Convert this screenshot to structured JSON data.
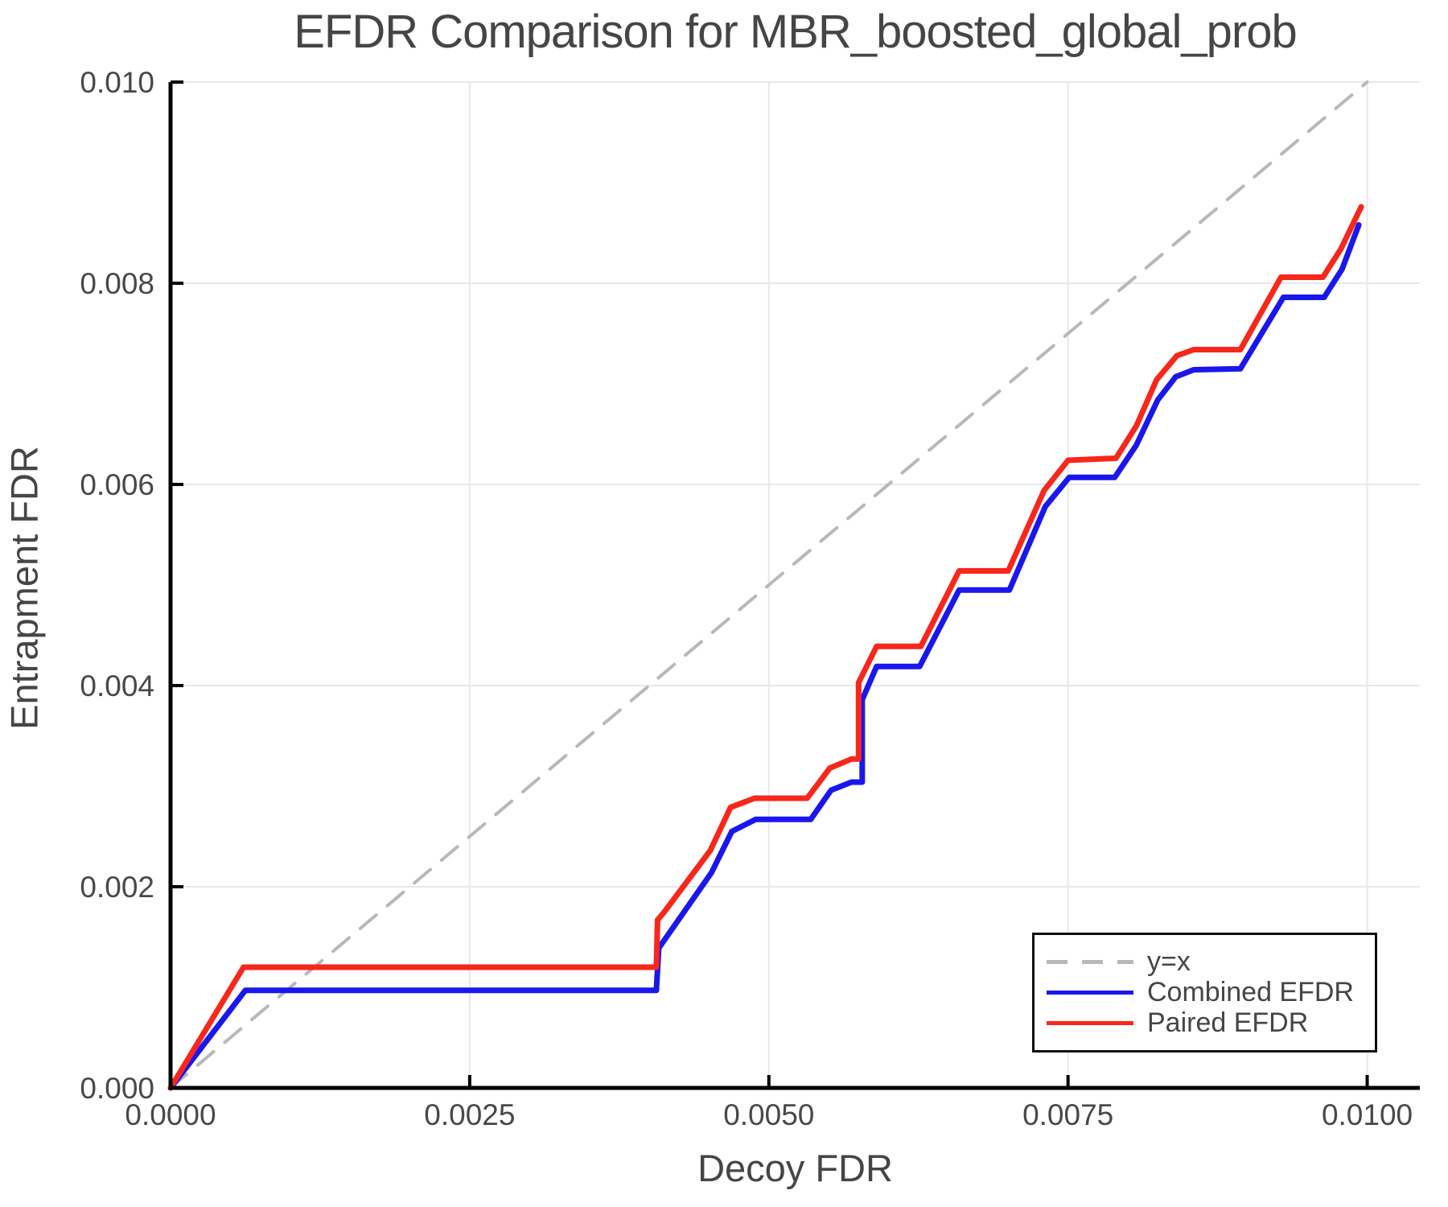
{
  "chart_data": {
    "type": "line",
    "title": "EFDR Comparison for MBR_boosted_global_prob",
    "xlabel": "Decoy FDR",
    "ylabel": "Entrapment FDR",
    "xlim": [
      0,
      0.01044
    ],
    "ylim": [
      0,
      0.01
    ],
    "grid": true,
    "legend_position": "lower right",
    "x_ticks": {
      "values": [
        0,
        0.0025,
        0.005,
        0.0075,
        0.01
      ],
      "labels": [
        "0.0000",
        "0.0025",
        "0.0050",
        "0.0075",
        "0.0100"
      ]
    },
    "y_ticks": {
      "values": [
        0,
        0.002,
        0.004,
        0.006,
        0.008,
        0.01
      ],
      "labels": [
        "0.000",
        "0.002",
        "0.004",
        "0.006",
        "0.008",
        "0.010"
      ]
    },
    "colors": {
      "grid": "#e8e8e8",
      "spine": "#000000",
      "text": "#484848",
      "identity": "#b8b8b8",
      "combined": "#1a17ec",
      "paired": "#f8271b"
    },
    "series": [
      {
        "name": "y=x",
        "color": "#b8b8b8",
        "width": 4,
        "dash": "26 18",
        "points": [
          [
            0,
            0
          ],
          [
            0.01,
            0.01
          ]
        ]
      },
      {
        "name": "Combined EFDR",
        "color": "#1a17ec",
        "width": 7,
        "dash": "",
        "points": [
          [
            0,
            0
          ],
          [
            0.000625,
            0.00097
          ],
          [
            0.00406,
            0.00097
          ],
          [
            0.00408,
            0.00139
          ],
          [
            0.00452,
            0.00214
          ],
          [
            0.00469,
            0.00255
          ],
          [
            0.00489,
            0.00267
          ],
          [
            0.00535,
            0.00267
          ],
          [
            0.00552,
            0.00296
          ],
          [
            0.00569,
            0.00304
          ],
          [
            0.00578,
            0.00304
          ],
          [
            0.00578,
            0.00386
          ],
          [
            0.0059,
            0.00419
          ],
          [
            0.00626,
            0.00419
          ],
          [
            0.00659,
            0.00495
          ],
          [
            0.00701,
            0.00495
          ],
          [
            0.00731,
            0.00578
          ],
          [
            0.00751,
            0.00607
          ],
          [
            0.00789,
            0.00607
          ],
          [
            0.00807,
            0.00639
          ],
          [
            0.00825,
            0.00684
          ],
          [
            0.0084,
            0.00707
          ],
          [
            0.00855,
            0.00714
          ],
          [
            0.00894,
            0.00715
          ],
          [
            0.0093,
            0.00786
          ],
          [
            0.00964,
            0.00786
          ],
          [
            0.00979,
            0.00814
          ],
          [
            0.00993,
            0.00858
          ]
        ]
      },
      {
        "name": "Paired EFDR",
        "color": "#f8271b",
        "width": 7,
        "dash": "",
        "points": [
          [
            0,
            0
          ],
          [
            0.00061,
            0.0012
          ],
          [
            0.00406,
            0.0012
          ],
          [
            0.00407,
            0.00167
          ],
          [
            0.00412,
            0.00174
          ],
          [
            0.00451,
            0.00236
          ],
          [
            0.00468,
            0.00279
          ],
          [
            0.00488,
            0.00288
          ],
          [
            0.00532,
            0.00288
          ],
          [
            0.00551,
            0.00318
          ],
          [
            0.00569,
            0.00327
          ],
          [
            0.00575,
            0.00327
          ],
          [
            0.00575,
            0.00403
          ],
          [
            0.0059,
            0.00439
          ],
          [
            0.00627,
            0.00439
          ],
          [
            0.00659,
            0.00514
          ],
          [
            0.007,
            0.00514
          ],
          [
            0.0073,
            0.00594
          ],
          [
            0.0075,
            0.00624
          ],
          [
            0.0079,
            0.00626
          ],
          [
            0.00807,
            0.00658
          ],
          [
            0.00824,
            0.00704
          ],
          [
            0.00841,
            0.00728
          ],
          [
            0.00855,
            0.00734
          ],
          [
            0.00894,
            0.00734
          ],
          [
            0.00928,
            0.00806
          ],
          [
            0.00963,
            0.00806
          ],
          [
            0.00978,
            0.00834
          ],
          [
            0.00995,
            0.00876
          ]
        ]
      }
    ]
  }
}
